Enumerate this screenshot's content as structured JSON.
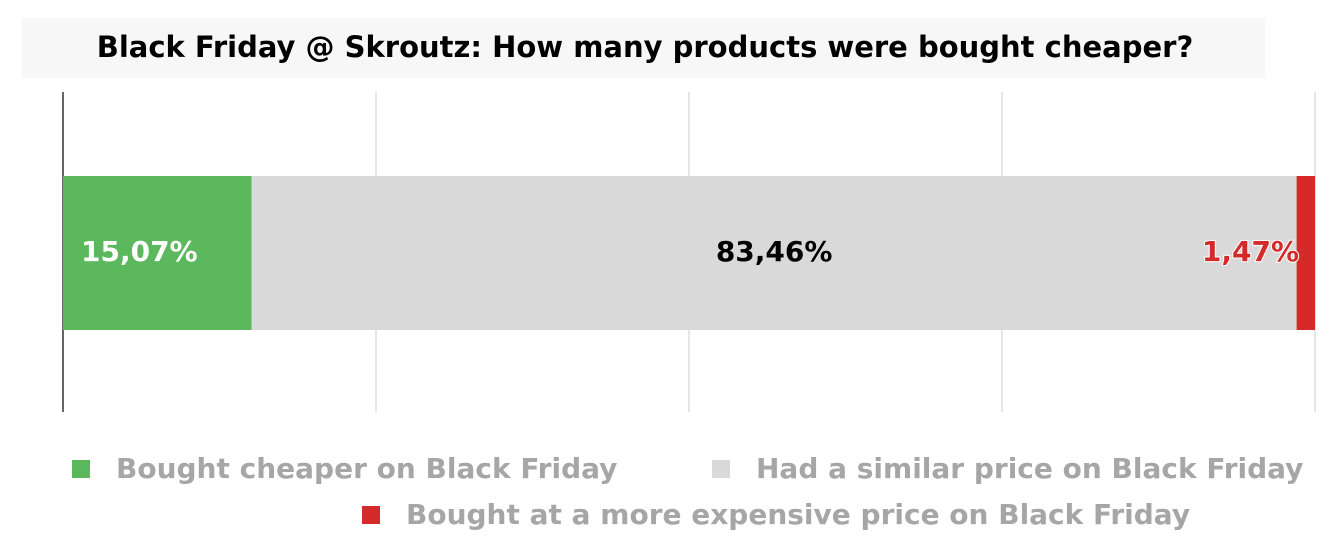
{
  "chart_data": {
    "type": "bar",
    "orientation": "horizontal",
    "stacked": true,
    "title": "Black Friday @ Skroutz: How many products were bought cheaper?",
    "categories": [
      null
    ],
    "series": [
      {
        "name": "Bought cheaper on Black Friday",
        "color": "#5cb85c",
        "label_color": "#ffffff",
        "values": [
          15.07
        ],
        "value_labels": [
          "15,07%"
        ]
      },
      {
        "name": "Had a similar price on Black Friday",
        "color": "#d9d9d9",
        "label_color": "#000000",
        "values": [
          83.46
        ],
        "value_labels": [
          "83,46%"
        ]
      },
      {
        "name": "Bought at a more expensive price on Black Friday",
        "color": "#d42a2a",
        "label_color": "#d42a2a",
        "values": [
          1.47
        ],
        "value_labels": [
          "1,47%"
        ]
      }
    ],
    "xlim": [
      0,
      100
    ],
    "xticks": [
      0,
      25,
      50,
      75,
      100
    ],
    "grid": true
  }
}
